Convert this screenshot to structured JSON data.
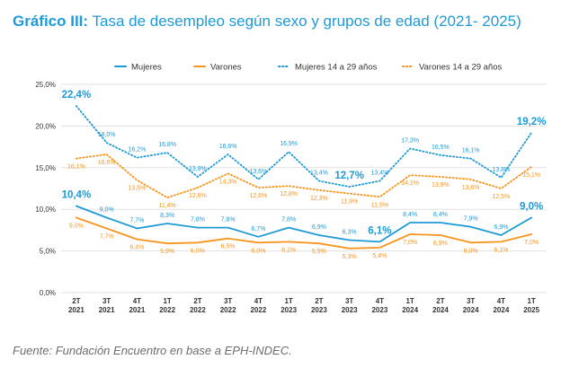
{
  "title": {
    "bold": "Gráfico III:",
    "rest": " Tasa de desempleo según sexo y grupos de edad (2021- 2025)"
  },
  "source": "Fuente: Fundación Encuentro en base a EPH-INDEC.",
  "colors": {
    "mujeres": "#1e9ad6",
    "varones": "#f7941d",
    "mujeres_1429": "#1e9ad6",
    "varones_1429": "#f7941d",
    "grid": "#e1e1e1",
    "axis_text": "#333333"
  },
  "chart_data": {
    "type": "line",
    "categories": [
      "2T 2021",
      "3T 2021",
      "4T 2021",
      "1T 2022",
      "2T 2022",
      "3T 2022",
      "4T 2022",
      "1T 2023",
      "2T 2023",
      "3T 2023",
      "4T 2023",
      "1T 2024",
      "2T 2024",
      "3T 2024",
      "4T 2024",
      "1T 2025"
    ],
    "y_ticks": [
      "0,0%",
      "5,0%",
      "10,0%",
      "15,0%",
      "20,0%",
      "25,0%"
    ],
    "ylim": [
      0,
      25
    ],
    "grid": true,
    "legend_position": "top",
    "series": [
      {
        "name": "Mujeres",
        "style": "solid",
        "values": [
          10.4,
          9.0,
          7.7,
          8.3,
          7.8,
          7.8,
          6.7,
          7.8,
          6.9,
          6.3,
          6.1,
          8.4,
          8.4,
          7.9,
          6.9,
          9.0
        ],
        "labels": [
          "10,4%",
          "9,0%",
          "7,7%",
          "8,3%",
          "7,8%",
          "7,8%",
          "6,7%",
          "7,8%",
          "6,9%",
          "6,3%",
          "6,1%",
          "8,4%",
          "8,4%",
          "7,9%",
          "6,9%",
          "9,0%"
        ],
        "big": [
          0,
          10,
          15
        ]
      },
      {
        "name": "Varones",
        "style": "solid",
        "values": [
          9.0,
          7.7,
          6.4,
          5.9,
          6.0,
          6.5,
          6.0,
          6.1,
          5.9,
          5.3,
          5.4,
          7.0,
          6.9,
          6.0,
          6.1,
          7.0
        ],
        "labels": [
          "9,0%",
          "7,7%",
          "6,4%",
          "5,9%",
          "6,0%",
          "6,5%",
          "6,0%",
          "6,1%",
          "5,9%",
          "5,3%",
          "5,4%",
          "7,0%",
          "6,9%",
          "6,0%",
          "6,1%",
          "7,0%"
        ],
        "big": []
      },
      {
        "name": "Mujeres 14 a 29 años",
        "style": "dotted",
        "values": [
          22.4,
          18.0,
          16.2,
          16.8,
          13.9,
          16.6,
          13.6,
          16.9,
          13.4,
          12.7,
          13.4,
          17.3,
          16.5,
          16.1,
          13.8,
          19.2
        ],
        "labels": [
          "22,4%",
          "18,0%",
          "16,2%",
          "16,8%",
          "13,9%",
          "16,6%",
          "13,6%",
          "16,9%",
          "13,4%",
          "12,7%",
          "13,4%",
          "17,3%",
          "16,5%",
          "16,1%",
          "13,8%",
          "19,2%"
        ],
        "big": [
          0,
          9,
          15
        ]
      },
      {
        "name": "Varones 14 a 29 años",
        "style": "dotted",
        "values": [
          16.1,
          16.6,
          13.5,
          11.4,
          12.6,
          14.3,
          12.6,
          12.8,
          12.3,
          11.9,
          11.5,
          14.1,
          13.9,
          13.6,
          12.5,
          15.1
        ],
        "labels": [
          "16,1%",
          "16,6%",
          "13,5%",
          "11,4%",
          "12,6%",
          "14,3%",
          "12,6%",
          "12,8%",
          "12,3%",
          "11,9%",
          "11,5%",
          "14,1%",
          "13,9%",
          "13,6%",
          "12,5%",
          "15,1%"
        ],
        "big": []
      }
    ]
  }
}
